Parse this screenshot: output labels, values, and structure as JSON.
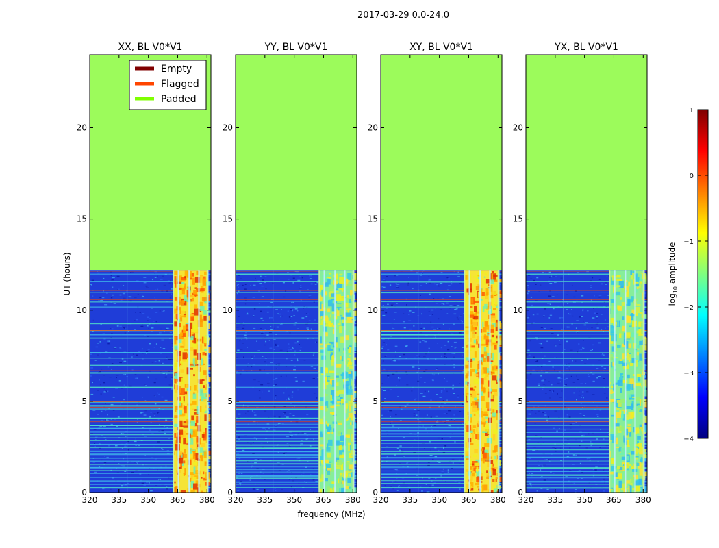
{
  "chart_data": {
    "type": "heatmap",
    "title": "2017-03-29 0.0-24.0",
    "xlabel": "frequency (MHz)",
    "ylabel": "UT (hours)",
    "xlim": [
      320,
      382
    ],
    "ylim": [
      0,
      24
    ],
    "x_ticks": [
      320,
      335,
      350,
      365,
      380
    ],
    "y_ticks": [
      0,
      5,
      10,
      15,
      20
    ],
    "data_extent_hours": [
      0.0,
      12.2
    ],
    "rfi_band_mhz": [
      362.5,
      380.5
    ],
    "panels": [
      {
        "title": "XX, BL V0*V1",
        "band_intensity": "high",
        "show_ylabel": true,
        "show_legend": true
      },
      {
        "title": "YY, BL V0*V1",
        "band_intensity": "low",
        "show_ylabel": false,
        "show_legend": false
      },
      {
        "title": "XY, BL V0*V1",
        "band_intensity": "high",
        "show_ylabel": false,
        "show_legend": false
      },
      {
        "title": "YX, BL V0*V1",
        "band_intensity": "low",
        "show_ylabel": false,
        "show_legend": false
      }
    ],
    "legend": {
      "position": "top-right",
      "entries": [
        {
          "label": "Empty",
          "color": "#800000"
        },
        {
          "label": "Flagged",
          "color": "#ff4500"
        },
        {
          "label": "Padded",
          "color": "#7fff00"
        }
      ]
    },
    "colorbar": {
      "label_prefix": "log",
      "label_subscript": "10",
      "label_suffix": " amplitude",
      "min": -4,
      "max": 1,
      "ticks": [
        1,
        0,
        -1,
        -2,
        -3,
        -4
      ],
      "tick_labels": [
        "1",
        "0",
        "−1",
        "−2",
        "−3",
        "−4"
      ],
      "footnote": "......"
    },
    "colors": {
      "padded": "#9cfb5b",
      "background": "#1f3dd8",
      "empty": "#800000",
      "flagged": "#ff4500",
      "padded_legend": "#7fff00"
    }
  }
}
